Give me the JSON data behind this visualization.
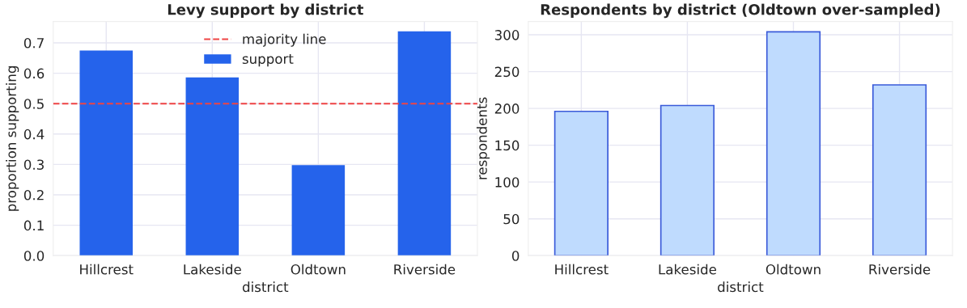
{
  "chart_data": [
    {
      "type": "bar",
      "title": "Levy support by district",
      "xlabel": "district",
      "ylabel": "proportion supporting",
      "categories": [
        "Hillcrest",
        "Lakeside",
        "Oldtown",
        "Riverside"
      ],
      "series": [
        {
          "name": "support",
          "color": "#2563eb",
          "values": [
            0.675,
            0.586,
            0.298,
            0.738
          ]
        }
      ],
      "ylim": [
        0,
        0.77
      ],
      "yticks": [
        {
          "value": 0,
          "label": "0.0"
        },
        0.1,
        0.2,
        0.3,
        0.4,
        0.5,
        0.6,
        0.7
      ],
      "ref_lines": [
        {
          "axis": "y",
          "value": 0.5,
          "label": "majority line",
          "color": "#ef4444",
          "line_style": "dashed"
        }
      ],
      "grid": true,
      "legend": "top"
    },
    {
      "type": "bar",
      "title": "Respondents by district (Oldtown over-sampled)",
      "xlabel": "district",
      "ylabel": "respondents",
      "categories": [
        "Hillcrest",
        "Lakeside",
        "Oldtown",
        "Riverside"
      ],
      "series": [
        {
          "color": "#bfdbfe",
          "values": [
            196,
            204,
            304,
            232
          ]
        }
      ],
      "ylim": [
        0,
        318
      ],
      "yticks": [
        0,
        50,
        100,
        150,
        200,
        250,
        300
      ],
      "grid": true
    }
  ]
}
